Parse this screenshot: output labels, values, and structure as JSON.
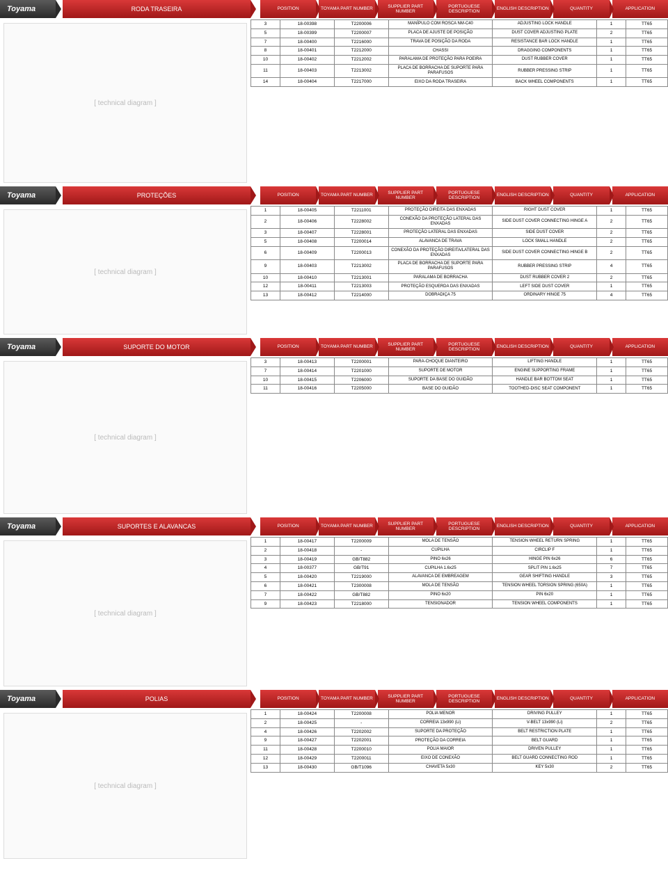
{
  "logo": "Toyama",
  "columns": [
    "POSITION",
    "TOYAMA PART NUMBER",
    "SUPPLIER PART NUMBER",
    "PORTUGUESE DESCRIPTION",
    "ENGLISH DESCRIPTION",
    "QUANTITY",
    "APPLICATION"
  ],
  "sections": [
    {
      "title": "RODA TRASEIRA",
      "diagram_h": 230,
      "rows": [
        [
          "3",
          "18-00398",
          "T2200006",
          "MANÍPULO COM ROSCA NM-C40",
          "ADJUSTING LOCK HANDLE",
          "1",
          "TT65"
        ],
        [
          "5",
          "18-00399",
          "T2200007",
          "PLACA DE AJUSTE DE POSIÇÃO",
          "DUST COVER ADJUSTING PLATE",
          "2",
          "TT65"
        ],
        [
          "7",
          "18-00400",
          "T2216000",
          "TRAVA DE POSIÇÃO DA RODA",
          "RESISTANCE BAR LOCK HANDLE",
          "1",
          "TT65"
        ],
        [
          "8",
          "18-00401",
          "T2212000",
          "CHASSI",
          "DRAGGING COMPONENTS",
          "1",
          "TT65"
        ],
        [
          "10",
          "18-00402",
          "T2212002",
          "PARALAMA DE PROTEÇÃO PARA POEIRA",
          "DUST RUBBER COVER",
          "1",
          "TT65"
        ],
        [
          "11",
          "18-00403",
          "T2213002",
          "PLACA DE BORRACHA DE SUPORTE PARA PARAFUSOS",
          "RUBBER PRESSING STRIP",
          "1",
          "TT65"
        ],
        [
          "14",
          "18-00404",
          "T2217000",
          "EIXO DA RODA TRASEIRA",
          "BACK WHEEL COMPONENTS",
          "1",
          "TT65"
        ]
      ]
    },
    {
      "title": "PROTEÇÕES",
      "diagram_h": 180,
      "rows": [
        [
          "1",
          "18-00405",
          "T2211001",
          "PROTEÇÃO DIREITA DAS ENXADAS",
          "RIGHT DUST COVER",
          "1",
          "TT65"
        ],
        [
          "2",
          "18-00406",
          "T2228002",
          "CONEXÃO DA PROTEÇÃO LATERAL DAS ENXADAS",
          "SIDE DUST COVER CONNECTING HINGE A",
          "2",
          "TT65"
        ],
        [
          "3",
          "18-00407",
          "T2228001",
          "PROTEÇÃO LATERAL DAS ENXADAS",
          "SIDE DUST COVER",
          "2",
          "TT65"
        ],
        [
          "5",
          "18-00408",
          "T2200014",
          "ALAVANCA DE TRAVA",
          "LOCK SMALL HANDLE",
          "2",
          "TT65"
        ],
        [
          "6",
          "18-00409",
          "T2200013",
          "CONEXÃO DA PROTEÇÃO DIREITA/LATERAL DAS ENXADAS",
          "SIDE DUST COVER CONNECTING HINGE B",
          "2",
          "TT65"
        ],
        [
          "9",
          "18-00403",
          "T2213002",
          "PLACA DE BORRACHA DE SUPORTE PARA PARAFUSOS",
          "RUBBER PRESSING STRIP",
          "4",
          "TT65"
        ],
        [
          "10",
          "18-00410",
          "T2213001",
          "PARALAMA DE BORRACHA",
          "DUST RUBBER COVER 2",
          "2",
          "TT65"
        ],
        [
          "12",
          "18-00411",
          "T2213003",
          "PROTEÇÃO ESQUERDA DAS ENXADAS",
          "LEFT SIDE DUST COVER",
          "1",
          "TT65"
        ],
        [
          "13",
          "18-00412",
          "T2214000",
          "DOBRADIÇA 75",
          "ORDINARY HINGE 75",
          "4",
          "TT65"
        ]
      ]
    },
    {
      "title": "SUPORTE DO MOTOR",
      "diagram_h": 220,
      "rows": [
        [
          "3",
          "18-00413",
          "T2200001",
          "PARA-CHOQUE DIANTEIRO",
          "LIFTING HANDLE",
          "1",
          "TT65"
        ],
        [
          "7",
          "18-00414",
          "T2201000",
          "SUPORTE DE MOTOR",
          "ENGINE SUPPORTING FRAME",
          "1",
          "TT65"
        ],
        [
          "10",
          "18-00415",
          "T2206000",
          "SUPORTE DA BASE DO GUIDÃO",
          "HANDLE BAR BOTTOM SEAT",
          "1",
          "TT65"
        ],
        [
          "11",
          "18-00416",
          "T2205000",
          "BASE DO GUIDÃO",
          "TOOTHED-DISC SEAT COMPONENT",
          "1",
          "TT65"
        ]
      ]
    },
    {
      "title": "SUPORTES E ALAVANCAS",
      "diagram_h": 210,
      "rows": [
        [
          "1",
          "18-00417",
          "T2200009",
          "MOLA DE TENSÃO",
          "TENSION WHEEL RETURN SPRING",
          "1",
          "TT65"
        ],
        [
          "2",
          "18-00418",
          "-",
          "CUPILHA",
          "CIRCLIP F",
          "1",
          "TT65"
        ],
        [
          "3",
          "18-00419",
          "GB/T882",
          "PINO 6x26",
          "HINGE PIN 6x26",
          "6",
          "TT65"
        ],
        [
          "4",
          "18-00377",
          "GB/T91",
          "CUPILHA 1.6x25",
          "SPLIT PIN 1.6x25",
          "7",
          "TT65"
        ],
        [
          "5",
          "18-00420",
          "T2219000",
          "ALAVANCA DE EMBREAGEM",
          "GEAR SHIFTING HANDLE",
          "3",
          "TT65"
        ],
        [
          "6",
          "18-00421",
          "T2300008",
          "MOLA DE TENSÃO",
          "TENSION WHEEL TORSION SPRING (650A)",
          "1",
          "TT65"
        ],
        [
          "7",
          "18-00422",
          "GB/T882",
          "PINO 6x20",
          "PIN 6x20",
          "1",
          "TT65"
        ],
        [
          "9",
          "18-00423",
          "T2218000",
          "TENSIONADOR",
          "TENSION WHEEL COMPONENTS",
          "1",
          "TT65"
        ]
      ]
    },
    {
      "title": "POLIAS",
      "diagram_h": 210,
      "rows": [
        [
          "1",
          "18-00424",
          "T2200008",
          "POLIA MENOR",
          "DRIVING PULLEY",
          "1",
          "TT65"
        ],
        [
          "2",
          "18-00425",
          "-",
          "CORREIA 13x990 (Li)",
          "V-BELT 13x990 (Li)",
          "2",
          "TT65"
        ],
        [
          "4",
          "18-00426",
          "T2202002",
          "SUPORTE DA PROTEÇÃO",
          "BELT RESTRICTION PLATE",
          "1",
          "TT65"
        ],
        [
          "9",
          "18-00427",
          "T2202001",
          "PROTEÇÃO DA CORREIA",
          "BELT GUARD",
          "1",
          "TT65"
        ],
        [
          "11",
          "18-00428",
          "T2200010",
          "POLIA MAIOR",
          "DRIVEN PULLEY",
          "1",
          "TT65"
        ],
        [
          "12",
          "18-00429",
          "T2200011",
          "EIXO DE CONEXÃO",
          "BELT GUARD CONNECTING ROD",
          "1",
          "TT65"
        ],
        [
          "13",
          "18-00430",
          "GB/T1096",
          "CHAVETA 5x30",
          "KEY 5x30",
          "2",
          "TT65"
        ]
      ]
    }
  ]
}
